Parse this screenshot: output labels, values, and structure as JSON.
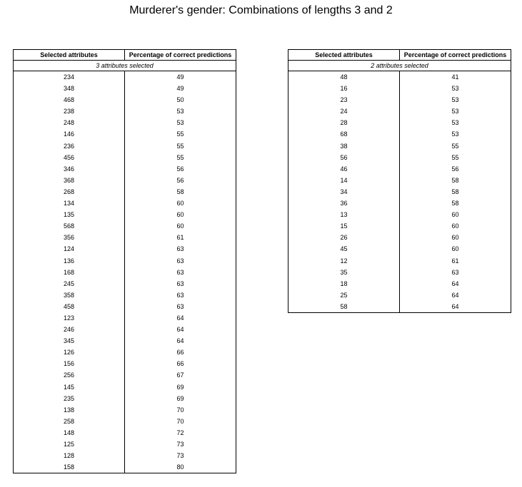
{
  "title": "Murderer's gender: Combinations of lengths 3 and 2",
  "tables": [
    {
      "headers": [
        "Selected attributes",
        "Percentage of correct predictions"
      ],
      "subheader": "3 attributes selected",
      "rows": [
        [
          "234",
          "49"
        ],
        [
          "348",
          "49"
        ],
        [
          "468",
          "50"
        ],
        [
          "238",
          "53"
        ],
        [
          "248",
          "53"
        ],
        [
          "146",
          "55"
        ],
        [
          "236",
          "55"
        ],
        [
          "456",
          "55"
        ],
        [
          "346",
          "56"
        ],
        [
          "368",
          "56"
        ],
        [
          "268",
          "58"
        ],
        [
          "134",
          "60"
        ],
        [
          "135",
          "60"
        ],
        [
          "568",
          "60"
        ],
        [
          "356",
          "61"
        ],
        [
          "124",
          "63"
        ],
        [
          "136",
          "63"
        ],
        [
          "168",
          "63"
        ],
        [
          "245",
          "63"
        ],
        [
          "358",
          "63"
        ],
        [
          "458",
          "63"
        ],
        [
          "123",
          "64"
        ],
        [
          "246",
          "64"
        ],
        [
          "345",
          "64"
        ],
        [
          "126",
          "66"
        ],
        [
          "156",
          "66"
        ],
        [
          "256",
          "67"
        ],
        [
          "145",
          "69"
        ],
        [
          "235",
          "69"
        ],
        [
          "138",
          "70"
        ],
        [
          "258",
          "70"
        ],
        [
          "148",
          "72"
        ],
        [
          "125",
          "73"
        ],
        [
          "128",
          "73"
        ],
        [
          "158",
          "80"
        ]
      ]
    },
    {
      "headers": [
        "Selected attributes",
        "Percentage of correct predictions"
      ],
      "subheader": "2 attributes selected",
      "rows": [
        [
          "48",
          "41"
        ],
        [
          "16",
          "53"
        ],
        [
          "23",
          "53"
        ],
        [
          "24",
          "53"
        ],
        [
          "28",
          "53"
        ],
        [
          "68",
          "53"
        ],
        [
          "38",
          "55"
        ],
        [
          "56",
          "55"
        ],
        [
          "46",
          "56"
        ],
        [
          "14",
          "58"
        ],
        [
          "34",
          "58"
        ],
        [
          "36",
          "58"
        ],
        [
          "13",
          "60"
        ],
        [
          "15",
          "60"
        ],
        [
          "26",
          "60"
        ],
        [
          "45",
          "60"
        ],
        [
          "12",
          "61"
        ],
        [
          "35",
          "63"
        ],
        [
          "18",
          "64"
        ],
        [
          "25",
          "64"
        ],
        [
          "58",
          "64"
        ]
      ]
    }
  ]
}
